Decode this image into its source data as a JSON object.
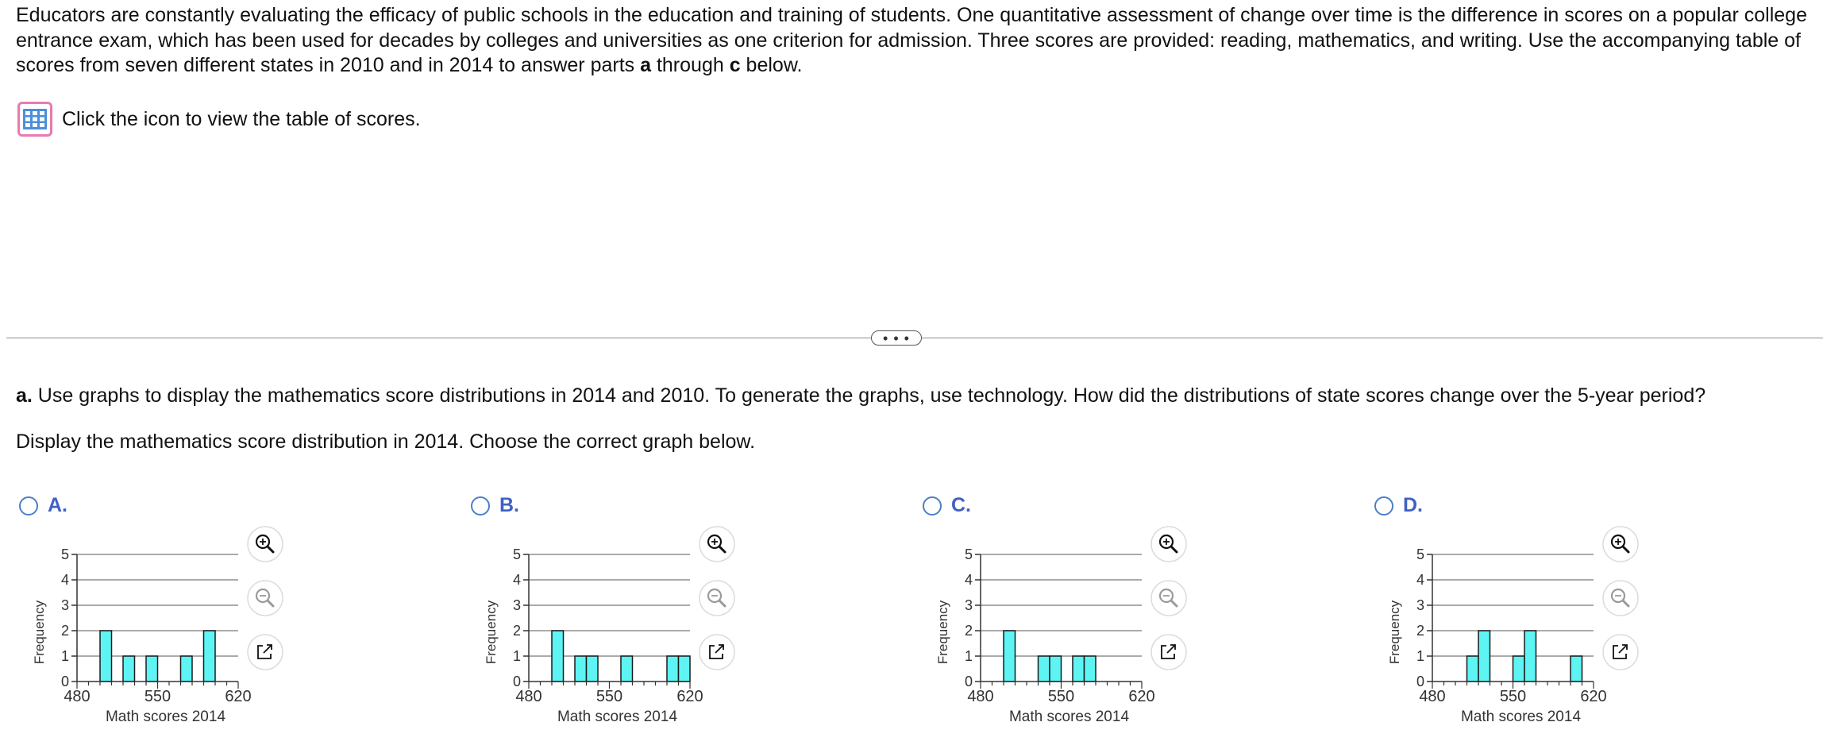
{
  "intro": {
    "part1": "Educators are constantly evaluating the efficacy of public schools in the education and training of students. One quantitative assessment of change over time is the difference in scores on a popular college entrance exam, which has been used for decades by colleges and universities as one criterion for admission. Three scores are provided: reading, mathematics, and writing. Use the accompanying table of scores from seven different states in 2010 and in 2014 to answer parts ",
    "bold_a": "a",
    "mid": " through ",
    "bold_c": "c",
    "end": " below."
  },
  "table_link": {
    "icon": "table-grid-icon",
    "text": "Click the icon to view the table of scores."
  },
  "divider": {
    "more_label": "• • •"
  },
  "question": {
    "part_label": "a.",
    "text": " Use graphs to display the mathematics score distributions in 2014 and 2010. To generate the graphs, use technology. How did the distributions of state scores change over the 5-year period?",
    "prompt": "Display the mathematics score distribution in 2014. Choose the correct graph below."
  },
  "colors": {
    "bar_fill": "#5ef4f4",
    "bar_stroke": "#1a1a1a",
    "radio": "#4a7fc9",
    "option_letter": "#3f60c6",
    "icon_border": "#e87bb0",
    "icon_fill": "#4a90d9"
  },
  "options": [
    {
      "letter": "A.",
      "selected": false
    },
    {
      "letter": "B.",
      "selected": false
    },
    {
      "letter": "C.",
      "selected": false
    },
    {
      "letter": "D.",
      "selected": false
    }
  ],
  "chart_data": [
    {
      "type": "bar",
      "option": "A",
      "xlabel": "Math scores 2014",
      "ylabel": "Frequency",
      "xlim": [
        480,
        620
      ],
      "ylim": [
        0,
        5
      ],
      "xticks": [
        480,
        550,
        620
      ],
      "yticks": [
        0,
        1,
        2,
        3,
        4,
        5
      ],
      "bin_width": 10,
      "bins": [
        {
          "start": 500,
          "end": 510,
          "value": 2
        },
        {
          "start": 520,
          "end": 530,
          "value": 1
        },
        {
          "start": 540,
          "end": 550,
          "value": 1
        },
        {
          "start": 570,
          "end": 580,
          "value": 1
        },
        {
          "start": 590,
          "end": 600,
          "value": 2
        }
      ],
      "grid": true
    },
    {
      "type": "bar",
      "option": "B",
      "xlabel": "Math scores 2014",
      "ylabel": "Frequency",
      "xlim": [
        480,
        620
      ],
      "ylim": [
        0,
        5
      ],
      "xticks": [
        480,
        550,
        620
      ],
      "yticks": [
        0,
        1,
        2,
        3,
        4,
        5
      ],
      "bin_width": 10,
      "bins": [
        {
          "start": 500,
          "end": 510,
          "value": 2
        },
        {
          "start": 520,
          "end": 530,
          "value": 1
        },
        {
          "start": 530,
          "end": 540,
          "value": 1
        },
        {
          "start": 560,
          "end": 570,
          "value": 1
        },
        {
          "start": 600,
          "end": 610,
          "value": 1
        },
        {
          "start": 610,
          "end": 620,
          "value": 1
        }
      ],
      "grid": true
    },
    {
      "type": "bar",
      "option": "C",
      "xlabel": "Math scores 2014",
      "ylabel": "Frequency",
      "xlim": [
        480,
        620
      ],
      "ylim": [
        0,
        5
      ],
      "xticks": [
        480,
        550,
        620
      ],
      "yticks": [
        0,
        1,
        2,
        3,
        4,
        5
      ],
      "bin_width": 10,
      "bins": [
        {
          "start": 500,
          "end": 510,
          "value": 2
        },
        {
          "start": 530,
          "end": 540,
          "value": 1
        },
        {
          "start": 540,
          "end": 550,
          "value": 1
        },
        {
          "start": 560,
          "end": 570,
          "value": 1
        },
        {
          "start": 570,
          "end": 580,
          "value": 1
        }
      ],
      "grid": true
    },
    {
      "type": "bar",
      "option": "D",
      "xlabel": "Math scores 2014",
      "ylabel": "Frequency",
      "xlim": [
        480,
        620
      ],
      "ylim": [
        0,
        5
      ],
      "xticks": [
        480,
        550,
        620
      ],
      "yticks": [
        0,
        1,
        2,
        3,
        4,
        5
      ],
      "bin_width": 10,
      "bins": [
        {
          "start": 510,
          "end": 520,
          "value": 1
        },
        {
          "start": 520,
          "end": 530,
          "value": 2
        },
        {
          "start": 550,
          "end": 560,
          "value": 1
        },
        {
          "start": 560,
          "end": 570,
          "value": 2
        },
        {
          "start": 600,
          "end": 610,
          "value": 1
        }
      ],
      "grid": true
    }
  ],
  "graph_controls": {
    "zoom_in": "zoom-in-icon",
    "zoom_out": "zoom-out-icon",
    "popout": "popout-icon"
  }
}
